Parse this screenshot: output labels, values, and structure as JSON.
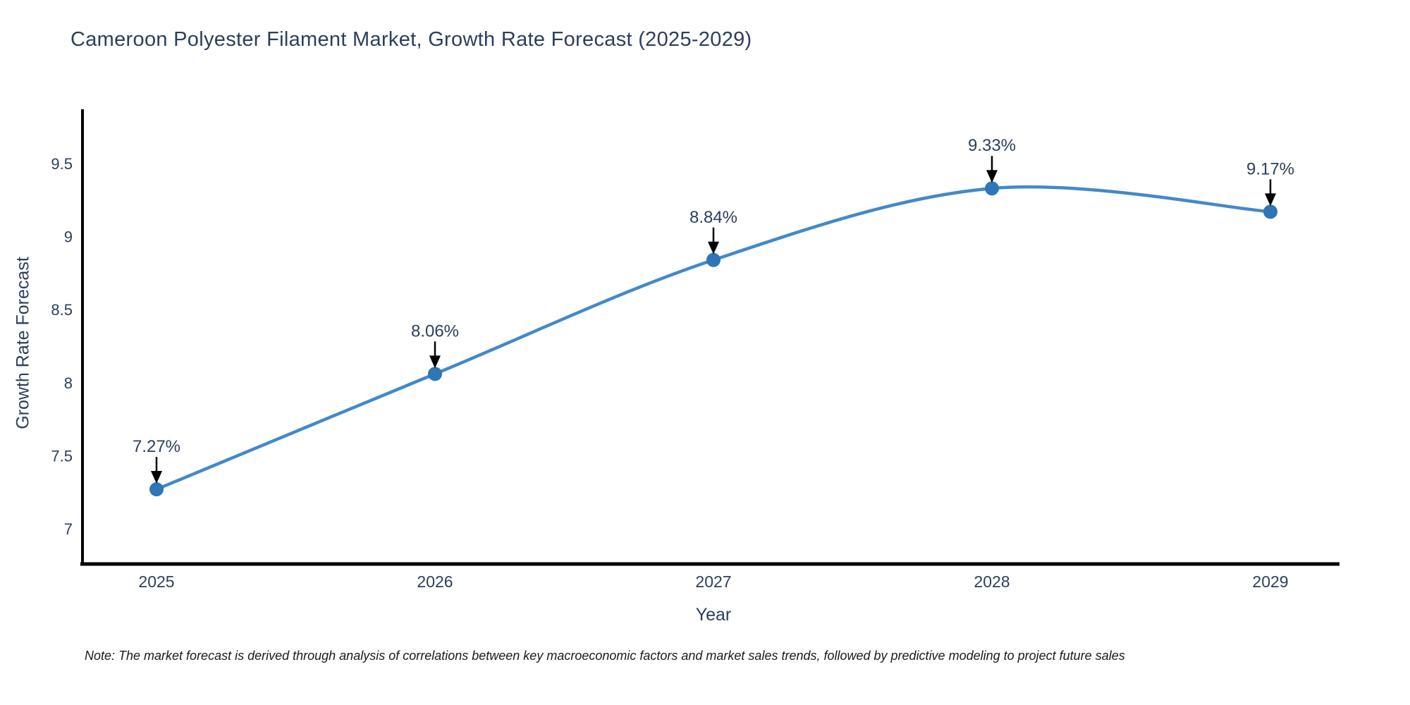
{
  "note": "Note: The market forecast is derived through analysis of correlations between key macroeconomic factors and market sales trends, followed by predictive modeling to project future sales",
  "chart_data": {
    "type": "line",
    "title": "Cameroon Polyester Filament Market, Growth Rate Forecast (2025-2029)",
    "xlabel": "Year",
    "ylabel": "Growth Rate Forecast",
    "x": [
      "2025",
      "2026",
      "2027",
      "2028",
      "2029"
    ],
    "values": [
      7.27,
      8.06,
      8.84,
      9.33,
      9.17
    ],
    "point_labels": [
      "7.27%",
      "8.06%",
      "8.84%",
      "9.33%",
      "9.17%"
    ],
    "yticks": [
      7,
      7.5,
      8,
      8.5,
      9,
      9.5
    ],
    "ylim": [
      6.76,
      9.87
    ],
    "grid": false,
    "legend": "none",
    "line_shape": "spline",
    "colors": {
      "line": "#4389c8",
      "marker": "#2e76b5",
      "axis": "#000000",
      "tick_text": "#2b3f5c",
      "annotation_text": "#2b3f5c",
      "annotation_arrow": "#000000",
      "note_text": "#1a1a1a",
      "background": "#ffffff"
    }
  }
}
